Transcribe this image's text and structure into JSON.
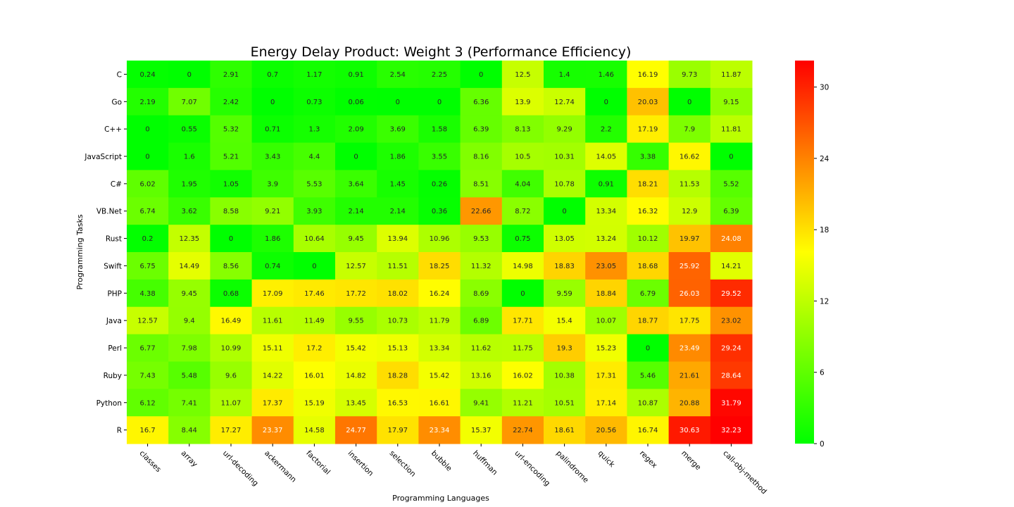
{
  "chart_data": {
    "type": "heatmap",
    "title": "Energy Delay Product: Weight 3 (Performance Efficiency)",
    "xlabel": "Programming Languages",
    "ylabel": "Programming Tasks",
    "columns": [
      "classes",
      "array",
      "url-decoding",
      "ackermann",
      "factorial",
      "insertion",
      "selection",
      "bubble",
      "huffman",
      "url-encoding",
      "palindrome",
      "quick",
      "regex",
      "merge",
      "call-obj-method"
    ],
    "rows": [
      "C",
      "Go",
      "C++",
      "JavaScript",
      "C#",
      "VB.Net",
      "Rust",
      "Swift",
      "PHP",
      "Java",
      "Perl",
      "Ruby",
      "Python",
      "R"
    ],
    "values": [
      [
        0.24,
        0,
        2.91,
        0.7,
        1.17,
        0.91,
        2.54,
        2.25,
        0,
        12.5,
        1.4,
        1.46,
        16.19,
        9.73,
        11.87
      ],
      [
        2.19,
        7.07,
        2.42,
        0,
        0.73,
        0.06,
        0,
        0,
        6.36,
        13.9,
        12.74,
        0,
        20.03,
        0,
        9.15
      ],
      [
        0,
        0.55,
        5.32,
        0.71,
        1.3,
        2.09,
        3.69,
        1.58,
        6.39,
        8.13,
        9.29,
        2.2,
        17.19,
        7.9,
        11.81
      ],
      [
        0,
        1.6,
        5.21,
        3.43,
        4.4,
        0,
        1.86,
        3.55,
        8.16,
        10.5,
        10.31,
        14.05,
        3.38,
        16.62,
        0
      ],
      [
        6.02,
        1.95,
        1.05,
        3.9,
        5.53,
        3.64,
        1.45,
        0.26,
        8.51,
        4.04,
        10.78,
        0.91,
        18.21,
        11.53,
        5.52
      ],
      [
        6.74,
        3.62,
        8.58,
        9.21,
        3.93,
        2.14,
        2.14,
        0.36,
        22.66,
        8.72,
        0,
        13.34,
        16.32,
        12.9,
        6.39
      ],
      [
        0.2,
        12.35,
        0,
        1.86,
        10.64,
        9.45,
        13.94,
        10.96,
        9.53,
        0.75,
        13.05,
        13.24,
        10.12,
        19.97,
        24.08
      ],
      [
        6.75,
        14.49,
        8.56,
        0.74,
        0,
        12.57,
        11.51,
        18.25,
        11.32,
        14.98,
        18.83,
        23.05,
        18.68,
        25.92,
        14.21
      ],
      [
        4.38,
        9.45,
        0.68,
        17.09,
        17.46,
        17.72,
        18.02,
        16.24,
        8.69,
        0,
        9.59,
        18.84,
        6.79,
        26.03,
        29.52
      ],
      [
        12.57,
        9.4,
        16.49,
        11.61,
        11.49,
        9.55,
        10.73,
        11.79,
        6.89,
        17.71,
        15.4,
        10.07,
        18.77,
        17.75,
        23.02
      ],
      [
        6.77,
        7.98,
        10.99,
        15.11,
        17.2,
        15.42,
        15.13,
        13.34,
        11.62,
        11.75,
        19.3,
        15.23,
        0,
        23.49,
        29.24
      ],
      [
        7.43,
        5.48,
        9.6,
        14.22,
        16.01,
        14.82,
        18.28,
        15.42,
        13.16,
        16.02,
        10.38,
        17.31,
        5.46,
        21.61,
        28.64
      ],
      [
        6.12,
        7.41,
        11.07,
        17.37,
        15.19,
        13.45,
        16.53,
        16.61,
        9.41,
        11.21,
        10.51,
        17.14,
        10.87,
        20.88,
        31.79
      ],
      [
        16.7,
        8.44,
        17.27,
        23.37,
        14.58,
        24.77,
        17.97,
        23.34,
        15.37,
        22.74,
        18.61,
        20.56,
        16.74,
        30.63,
        32.23
      ]
    ],
    "colorscale": {
      "min": 0,
      "max": 32.23,
      "colors": [
        "#00ff00",
        "#ffff00",
        "#ff0000"
      ]
    },
    "colorbar_ticks": [
      0,
      6,
      12,
      18,
      24,
      30
    ]
  }
}
